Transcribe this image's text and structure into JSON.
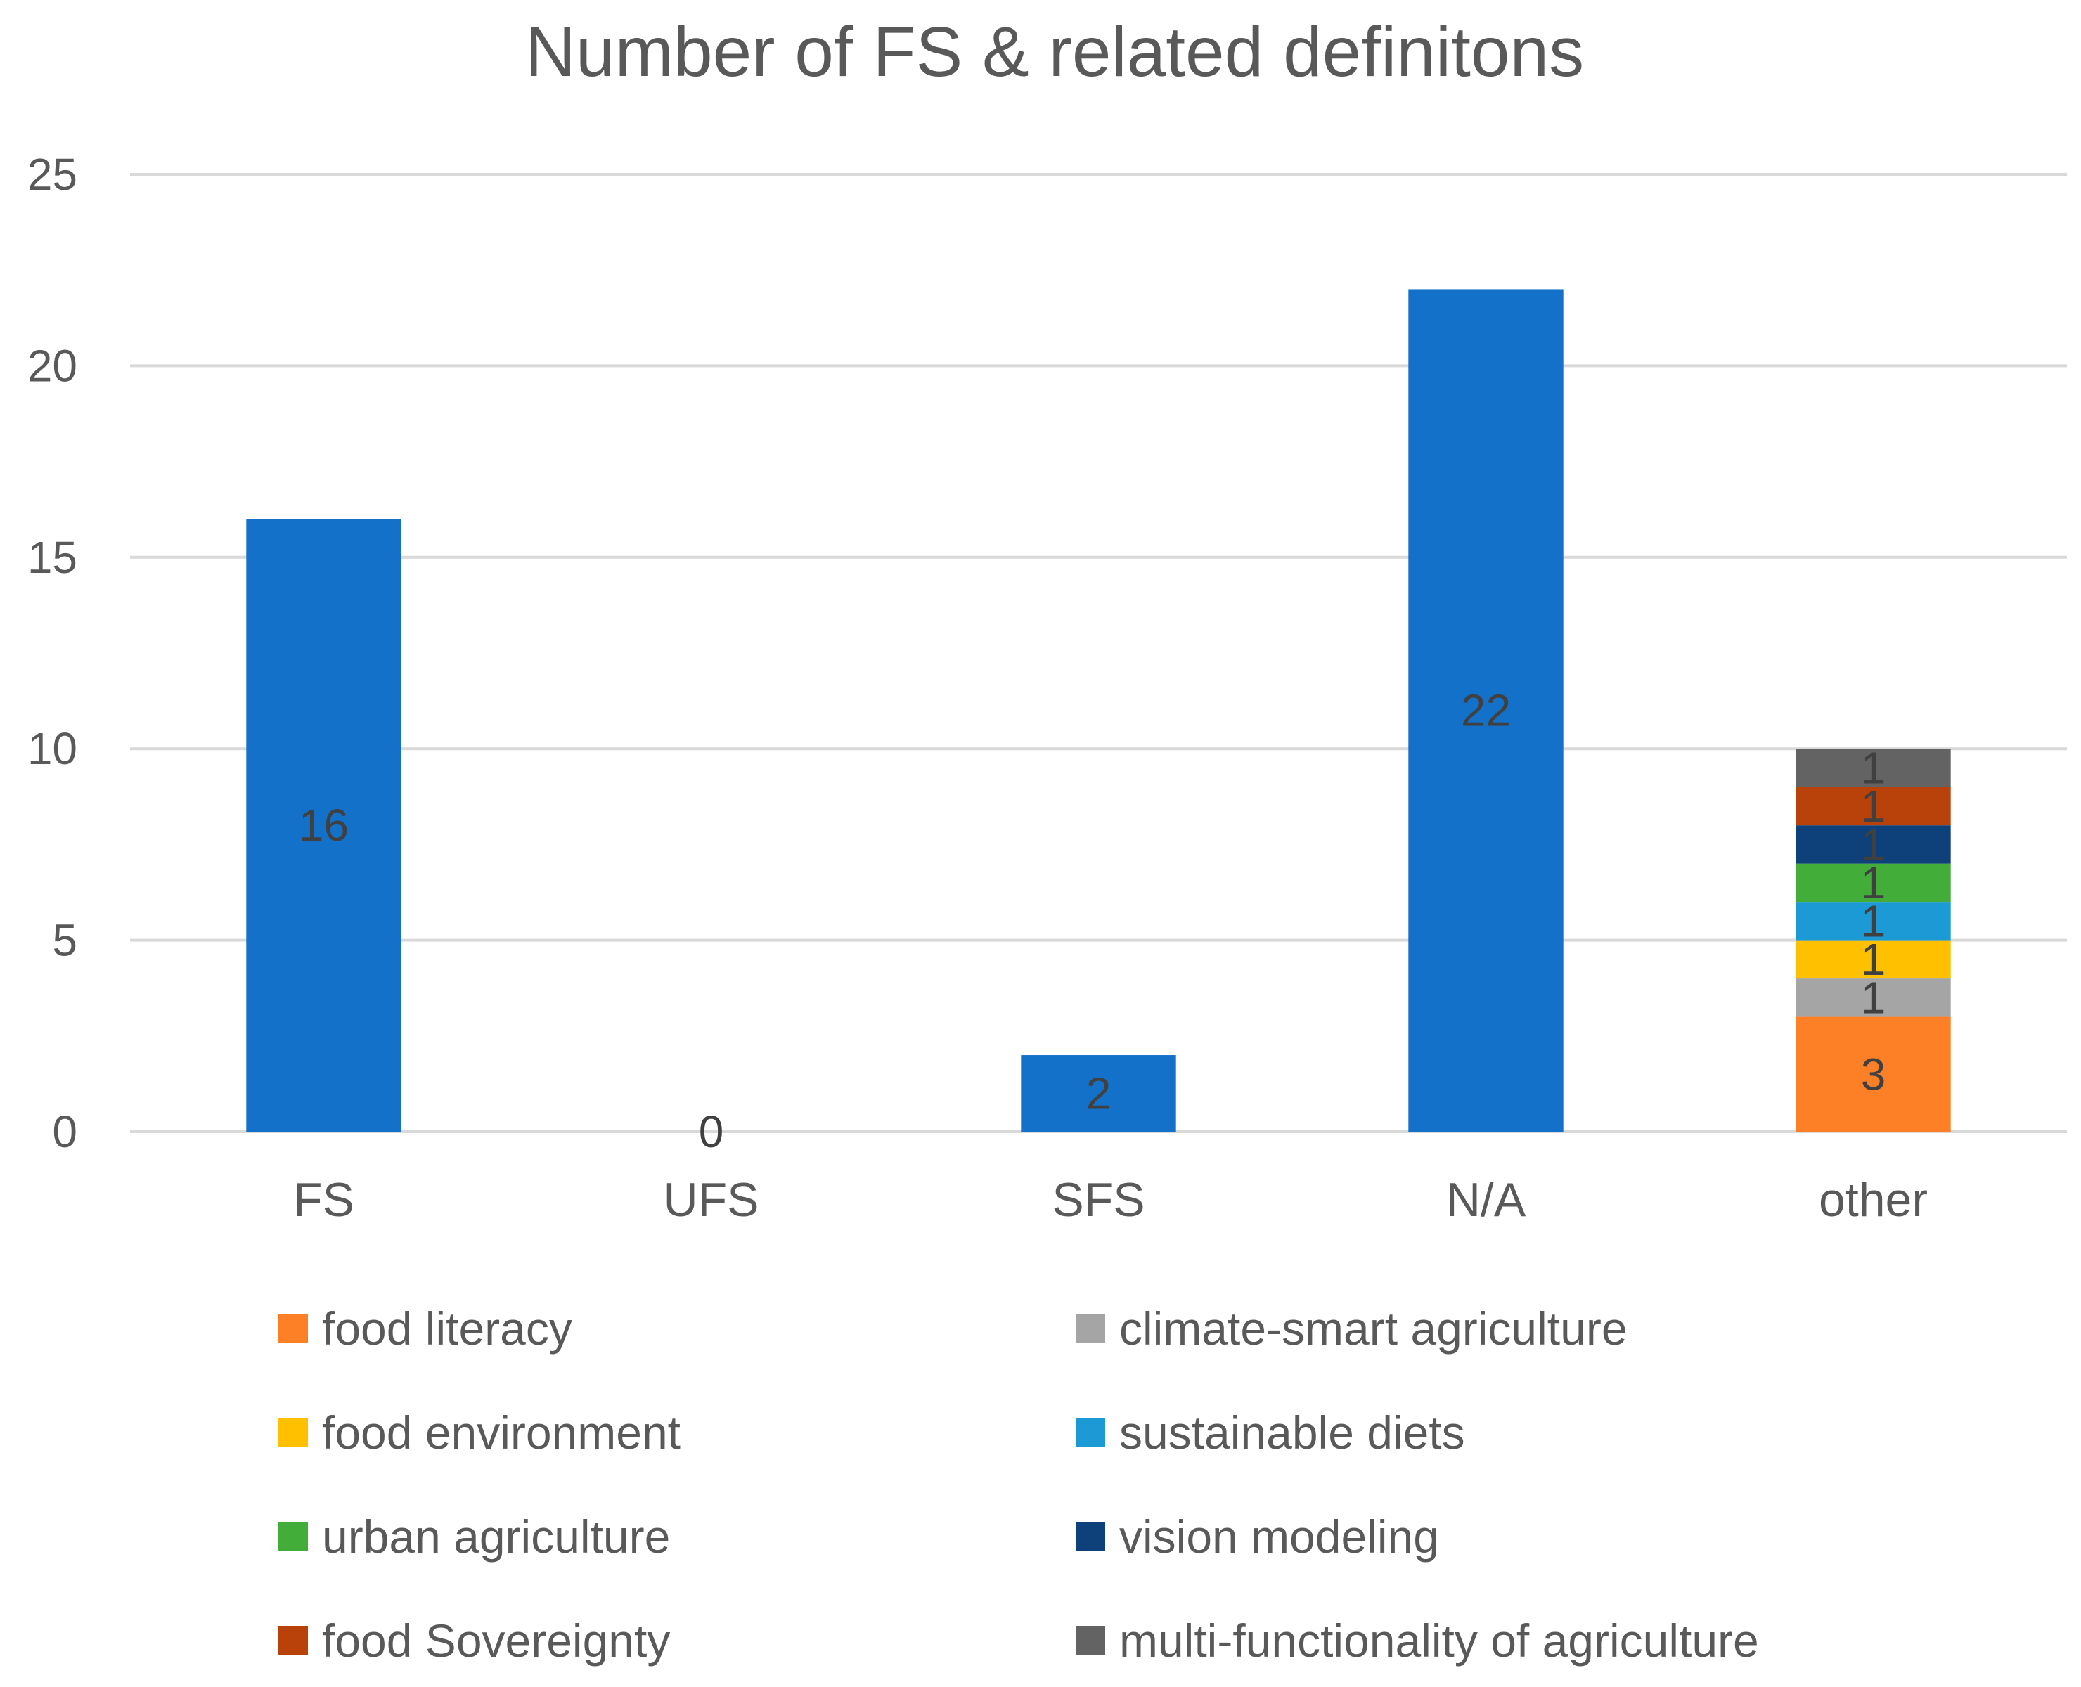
{
  "chart_data": {
    "type": "bar",
    "stacked": true,
    "title": "Number of FS & related definitons",
    "xlabel": "",
    "ylabel": "",
    "ylim": [
      0,
      25
    ],
    "yticks": [
      0,
      5,
      10,
      15,
      20,
      25
    ],
    "grid": true,
    "legend_position": "bottom",
    "categories": [
      "FS",
      "UFS",
      "SFS",
      "N/A",
      "other"
    ],
    "main_series": {
      "name": "count",
      "color": "#1471c9",
      "values": [
        16,
        0,
        2,
        22,
        null
      ]
    },
    "series": [
      {
        "name": "food literacy",
        "color": "#fd7f26",
        "values": [
          null,
          null,
          null,
          null,
          3
        ]
      },
      {
        "name": "climate-smart agriculture",
        "color": "#a5a5a5",
        "values": [
          null,
          null,
          null,
          null,
          1
        ]
      },
      {
        "name": "food environment",
        "color": "#ffc000",
        "values": [
          null,
          null,
          null,
          null,
          1
        ]
      },
      {
        "name": "sustainable diets",
        "color": "#1c9ad6",
        "values": [
          null,
          null,
          null,
          null,
          1
        ]
      },
      {
        "name": "urban agriculture",
        "color": "#43ad3a",
        "values": [
          null,
          null,
          null,
          null,
          1
        ]
      },
      {
        "name": "vision modeling",
        "color": "#0e4179",
        "values": [
          null,
          null,
          null,
          null,
          1
        ]
      },
      {
        "name": "food Sovereignty",
        "color": "#b9420a",
        "values": [
          null,
          null,
          null,
          null,
          1
        ]
      },
      {
        "name": "multi-functionality of agriculture",
        "color": "#636363",
        "values": [
          null,
          null,
          null,
          null,
          1
        ]
      }
    ]
  }
}
